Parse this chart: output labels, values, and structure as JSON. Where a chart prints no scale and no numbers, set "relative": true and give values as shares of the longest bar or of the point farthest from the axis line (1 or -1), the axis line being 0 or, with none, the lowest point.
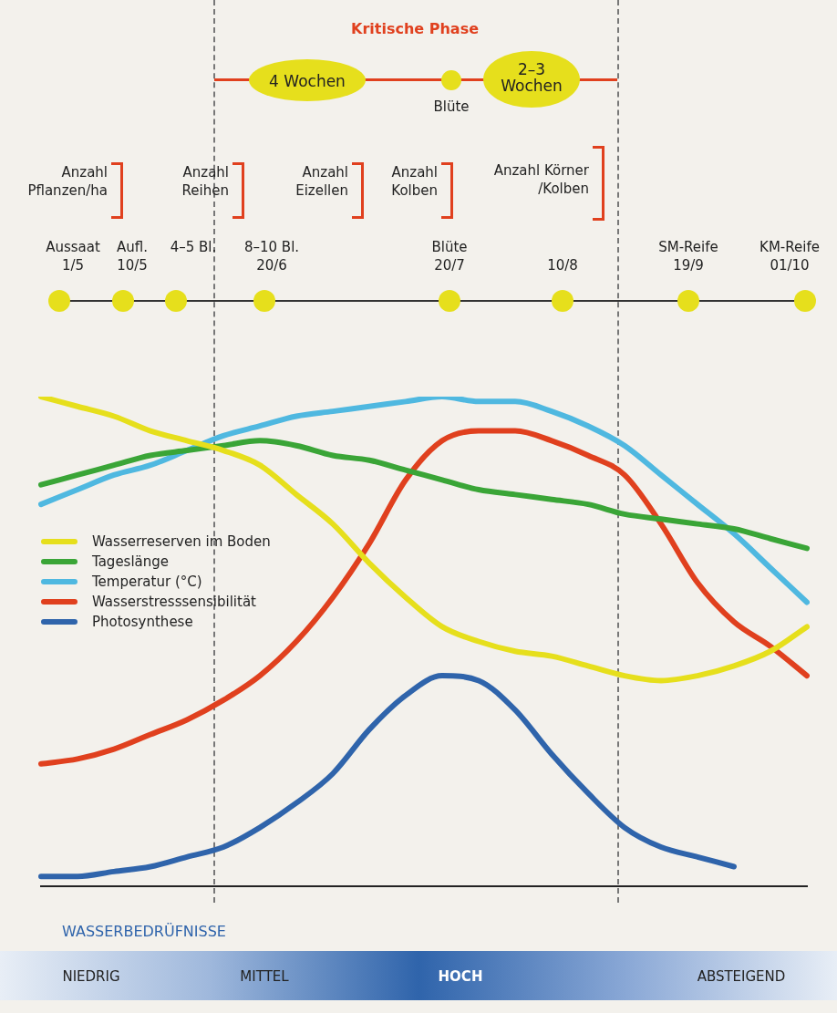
{
  "chart_data": {
    "type": "line",
    "relative": true,
    "marker": "none",
    "legend": "left",
    "categories": [
      null,
      null,
      null,
      null,
      null,
      null,
      null,
      null,
      null,
      null,
      null,
      null,
      null,
      null,
      null,
      null,
      null,
      null,
      null,
      null,
      null,
      null
    ],
    "series": [
      {
        "name": "Wasserreserven im Boden",
        "color": "#e6df1c",
        "values": [
          1.0,
          0.98,
          0.96,
          0.93,
          0.91,
          0.89,
          0.86,
          0.8,
          0.74,
          0.66,
          0.59,
          0.53,
          0.5,
          0.48,
          0.47,
          0.45,
          0.43,
          0.42,
          0.43,
          0.45,
          0.48,
          0.53
        ]
      },
      {
        "name": "Tageslänge",
        "color": "#3aa537",
        "values": [
          0.82,
          0.84,
          0.86,
          0.88,
          0.89,
          0.9,
          0.91,
          0.9,
          0.88,
          0.87,
          0.85,
          0.83,
          0.81,
          0.8,
          0.79,
          0.78,
          0.76,
          0.75,
          0.74,
          0.73,
          0.71,
          0.69
        ]
      },
      {
        "name": "Temperatur (°C)",
        "color": "#4fb8e0",
        "values": [
          0.78,
          0.81,
          0.84,
          0.86,
          0.89,
          0.92,
          0.94,
          0.96,
          0.97,
          0.98,
          0.99,
          1.0,
          0.99,
          0.99,
          0.97,
          0.94,
          0.9,
          0.84,
          0.78,
          0.72,
          0.65,
          0.58
        ]
      },
      {
        "name": "Wasserstresssensibilität",
        "color": "#e0401e",
        "values": [
          0.25,
          0.26,
          0.28,
          0.31,
          0.34,
          0.38,
          0.43,
          0.5,
          0.59,
          0.7,
          0.83,
          0.91,
          0.93,
          0.93,
          0.91,
          0.88,
          0.84,
          0.74,
          0.62,
          0.54,
          0.49,
          0.43
        ]
      },
      {
        "name": "Photosynthese",
        "color": "#2f64ab",
        "values": [
          0.02,
          0.02,
          0.03,
          0.04,
          0.06,
          0.08,
          0.12,
          0.17,
          0.23,
          0.32,
          0.39,
          0.43,
          0.42,
          0.36,
          0.27,
          0.19,
          0.12,
          0.08,
          0.06,
          0.04,
          null,
          null
        ]
      }
    ],
    "annotations": [
      "Kritische Phase",
      "4 Wochen",
      "Blüte",
      "2–3\nWochen",
      "Anzahl\nPflanzen/ha",
      "Anzahl\nReihen",
      "Anzahl\nEizellen",
      "Anzahl\nKolben",
      "Anzahl Körner\n/Kolben",
      "Aussaat\n1/5",
      "Aufl.\n10/5",
      "4–5 Bl.",
      "8–10 Bl.\n20/6",
      "Blüte\n20/7",
      "10/8",
      "SM-Reife\n19/9",
      "KM-Reife\n01/10",
      "WASSERBEDRÜFNISSE",
      "NIEDRIG",
      "MITTEL",
      "HOCH",
      "ABSTEIGEND"
    ]
  }
}
